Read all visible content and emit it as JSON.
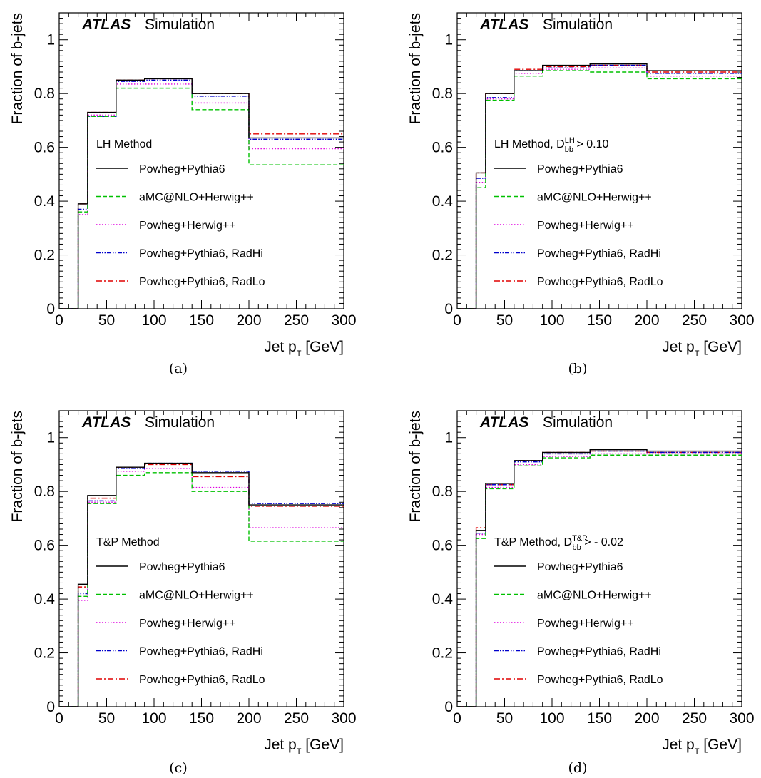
{
  "figure": {
    "experiment": "ATLAS",
    "status": "Simulation"
  },
  "legend_entries": [
    {
      "name": "Powheg+Pythia6",
      "color": "#000000",
      "style": "solid"
    },
    {
      "name": "aMC@NLO+Herwig++",
      "color": "#00c000",
      "style": "dashed"
    },
    {
      "name": "Powheg+Herwig++",
      "color": "#e000e0",
      "style": "dotted"
    },
    {
      "name": "Powheg+Pythia6, RadHi",
      "color": "#0000cc",
      "style": "dashdotdot"
    },
    {
      "name": "Powheg+Pythia6, RadLo",
      "color": "#e00000",
      "style": "dashdot"
    }
  ],
  "chart_data": [
    {
      "panel": "(a)",
      "type": "line",
      "step": true,
      "method_label": "LH Method",
      "cut_label": null,
      "ylabel": "Fraction of b-jets",
      "xlabel": "Jet p_T [GeV]",
      "xlim": [
        0,
        300
      ],
      "ylim": [
        0,
        1.1
      ],
      "x_ticks": [
        0,
        50,
        100,
        150,
        200,
        250,
        300
      ],
      "y_ticks": [
        0,
        0.2,
        0.4,
        0.6,
        0.8,
        1
      ],
      "bin_edges": [
        0,
        20,
        30,
        60,
        90,
        140,
        200,
        300
      ],
      "series": [
        {
          "name": "Powheg+Pythia6",
          "values": [
            0,
            0.39,
            0.73,
            0.85,
            0.855,
            0.8,
            0.635
          ]
        },
        {
          "name": "aMC@NLO+Herwig++",
          "values": [
            0,
            0.36,
            0.715,
            0.82,
            0.82,
            0.74,
            0.535
          ]
        },
        {
          "name": "Powheg+Herwig++",
          "values": [
            0,
            0.35,
            0.72,
            0.835,
            0.835,
            0.765,
            0.595
          ]
        },
        {
          "name": "Powheg+Pythia6, RadHi",
          "values": [
            0,
            0.37,
            0.715,
            0.845,
            0.85,
            0.79,
            0.63
          ]
        },
        {
          "name": "Powheg+Pythia6, RadLo",
          "values": [
            0,
            0.39,
            0.73,
            0.85,
            0.855,
            0.8,
            0.65
          ]
        }
      ]
    },
    {
      "panel": "(b)",
      "type": "line",
      "step": true,
      "method_label": "LH Method, D",
      "cut_label": {
        "sup": "LH",
        "sub": "bb",
        "rest": " > 0.10"
      },
      "ylabel": "Fraction of b-jets",
      "xlabel": "Jet p_T [GeV]",
      "xlim": [
        0,
        300
      ],
      "ylim": [
        0,
        1.1
      ],
      "x_ticks": [
        0,
        50,
        100,
        150,
        200,
        250,
        300
      ],
      "y_ticks": [
        0,
        0.2,
        0.4,
        0.6,
        0.8,
        1
      ],
      "bin_edges": [
        0,
        20,
        30,
        60,
        90,
        140,
        200,
        300
      ],
      "series": [
        {
          "name": "Powheg+Pythia6",
          "values": [
            0,
            0.505,
            0.8,
            0.885,
            0.905,
            0.91,
            0.885
          ]
        },
        {
          "name": "aMC@NLO+Herwig++",
          "values": [
            0,
            0.45,
            0.775,
            0.865,
            0.885,
            0.88,
            0.855
          ]
        },
        {
          "name": "Powheg+Herwig++",
          "values": [
            0,
            0.47,
            0.78,
            0.875,
            0.89,
            0.895,
            0.865
          ]
        },
        {
          "name": "Powheg+Pythia6, RadHi",
          "values": [
            0,
            0.485,
            0.785,
            0.885,
            0.895,
            0.905,
            0.875
          ]
        },
        {
          "name": "Powheg+Pythia6, RadLo",
          "values": [
            0,
            0.505,
            0.8,
            0.89,
            0.9,
            0.905,
            0.88
          ]
        }
      ]
    },
    {
      "panel": "(c)",
      "type": "line",
      "step": true,
      "method_label": "T&P Method",
      "cut_label": null,
      "ylabel": "Fraction of b-jets",
      "xlabel": "Jet p_T [GeV]",
      "xlim": [
        0,
        300
      ],
      "ylim": [
        0,
        1.1
      ],
      "x_ticks": [
        0,
        50,
        100,
        150,
        200,
        250,
        300
      ],
      "y_ticks": [
        0,
        0.2,
        0.4,
        0.6,
        0.8,
        1
      ],
      "bin_edges": [
        0,
        20,
        30,
        60,
        90,
        140,
        200,
        300
      ],
      "series": [
        {
          "name": "Powheg+Pythia6",
          "values": [
            0,
            0.455,
            0.785,
            0.89,
            0.905,
            0.87,
            0.75
          ]
        },
        {
          "name": "aMC@NLO+Herwig++",
          "values": [
            0,
            0.41,
            0.755,
            0.86,
            0.87,
            0.8,
            0.615
          ]
        },
        {
          "name": "Powheg+Herwig++",
          "values": [
            0,
            0.395,
            0.76,
            0.875,
            0.885,
            0.815,
            0.665
          ]
        },
        {
          "name": "Powheg+Pythia6, RadHi",
          "values": [
            0,
            0.42,
            0.765,
            0.885,
            0.905,
            0.875,
            0.755
          ]
        },
        {
          "name": "Powheg+Pythia6, RadLo",
          "values": [
            0,
            0.445,
            0.775,
            0.89,
            0.9,
            0.855,
            0.745
          ]
        }
      ]
    },
    {
      "panel": "(d)",
      "type": "line",
      "step": true,
      "method_label": "T&P Method, D",
      "cut_label": {
        "sup": "T&P",
        "sub": "bb",
        "rest": " > - 0.02"
      },
      "ylabel": "Fraction of b-jets",
      "xlabel": "Jet p_T [GeV]",
      "xlim": [
        0,
        300
      ],
      "ylim": [
        0,
        1.1
      ],
      "x_ticks": [
        0,
        50,
        100,
        150,
        200,
        250,
        300
      ],
      "y_ticks": [
        0,
        0.2,
        0.4,
        0.6,
        0.8,
        1
      ],
      "bin_edges": [
        0,
        20,
        30,
        60,
        90,
        140,
        200,
        300
      ],
      "series": [
        {
          "name": "Powheg+Pythia6",
          "values": [
            0,
            0.655,
            0.83,
            0.915,
            0.945,
            0.955,
            0.95
          ]
        },
        {
          "name": "aMC@NLO+Herwig++",
          "values": [
            0,
            0.625,
            0.81,
            0.895,
            0.925,
            0.935,
            0.935
          ]
        },
        {
          "name": "Powheg+Herwig++",
          "values": [
            0,
            0.64,
            0.815,
            0.9,
            0.93,
            0.94,
            0.94
          ]
        },
        {
          "name": "Powheg+Pythia6, RadHi",
          "values": [
            0,
            0.645,
            0.825,
            0.91,
            0.94,
            0.95,
            0.945
          ]
        },
        {
          "name": "Powheg+Pythia6, RadLo",
          "values": [
            0,
            0.665,
            0.825,
            0.915,
            0.945,
            0.95,
            0.945
          ]
        }
      ]
    }
  ]
}
